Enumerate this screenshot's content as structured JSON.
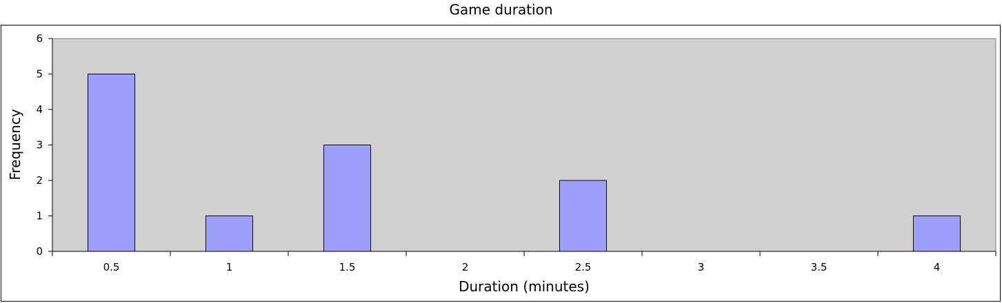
{
  "chart_data": {
    "type": "bar",
    "title": "Game duration",
    "xlabel": "Duration (minutes)",
    "ylabel": "Frequency",
    "categories": [
      "0.5",
      "1",
      "1.5",
      "2",
      "2.5",
      "3",
      "3.5",
      "4"
    ],
    "values": [
      5,
      1,
      3,
      0,
      2,
      0,
      0,
      1
    ],
    "ylim": [
      0,
      6
    ],
    "yticks": [
      "0",
      "1",
      "2",
      "3",
      "4",
      "5",
      "6"
    ],
    "grid": false,
    "legend": "none",
    "plot_background": "#d0d0d0",
    "bar_color": "#9f9fff",
    "bar_outline": "#000000"
  }
}
